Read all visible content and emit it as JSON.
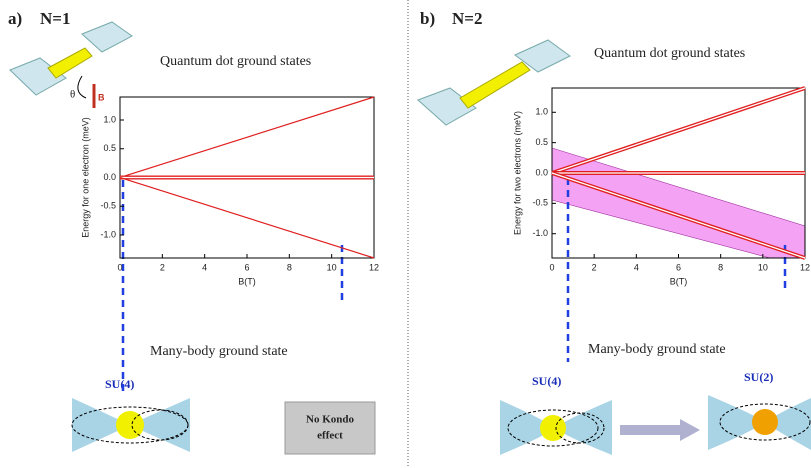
{
  "chart_data": [
    {
      "type": "line",
      "panel_label": "a)",
      "title": "N=1",
      "subtitle": "Quantum dot ground states",
      "xlabel": "B(T)",
      "ylabel": "Energy for one electron (meV)",
      "xlim": [
        0,
        12
      ],
      "ylim": [
        -1.4,
        1.4
      ],
      "xticks": [
        0,
        2,
        4,
        6,
        8,
        10,
        12
      ],
      "yticks": [
        {
          "value": -1,
          "label": "-1.0"
        },
        {
          "value": -0.5,
          "label": "-0.5"
        },
        {
          "value": 0,
          "label": "0.0"
        },
        {
          "value": 0.5,
          "label": "0.5"
        },
        {
          "value": 1,
          "label": "1.0"
        }
      ],
      "series": [
        {
          "color": "#e02020",
          "double": false,
          "x": [
            0,
            12
          ],
          "values": [
            0,
            1.4
          ]
        },
        {
          "color": "#e02020",
          "double": true,
          "x": [
            0,
            12
          ],
          "values": [
            0,
            0
          ]
        },
        {
          "color": "#e02020",
          "double": false,
          "x": [
            0,
            12
          ],
          "values": [
            0,
            -1.4
          ]
        }
      ],
      "annotations": {
        "angle": "θ",
        "field": "B",
        "many_body": "Many-body ground state",
        "su4": "SU(4)",
        "no_kondo": [
          "No Kondo",
          "effect"
        ]
      }
    },
    {
      "type": "line",
      "panel_label": "b)",
      "title": "N=2",
      "subtitle": "Quantum dot ground states",
      "xlabel": "B(T)",
      "ylabel": "Energy for two electrons (meV)",
      "xlim": [
        0,
        12
      ],
      "ylim": [
        -1.4,
        1.4
      ],
      "xticks": [
        0,
        2,
        4,
        6,
        8,
        10,
        12
      ],
      "yticks": [
        {
          "value": -1,
          "label": "-1.0"
        },
        {
          "value": -0.5,
          "label": "-0.5"
        },
        {
          "value": 0,
          "label": "0.0"
        },
        {
          "value": 0.5,
          "label": "0.5"
        },
        {
          "value": 1,
          "label": "1.0"
        }
      ],
      "series": [
        {
          "color": "#e02020",
          "double": true,
          "x": [
            0,
            12
          ],
          "values": [
            0,
            1.4
          ]
        },
        {
          "color": "#e02020",
          "double": true,
          "x": [
            0,
            12
          ],
          "values": [
            0,
            0
          ]
        },
        {
          "color": "#e02020",
          "double": true,
          "x": [
            0,
            12
          ],
          "values": [
            0,
            -1.4
          ]
        }
      ],
      "annotations": {
        "many_body": "Many-body ground state",
        "su4": "SU(4)",
        "su2": "SU(2)"
      }
    }
  ]
}
